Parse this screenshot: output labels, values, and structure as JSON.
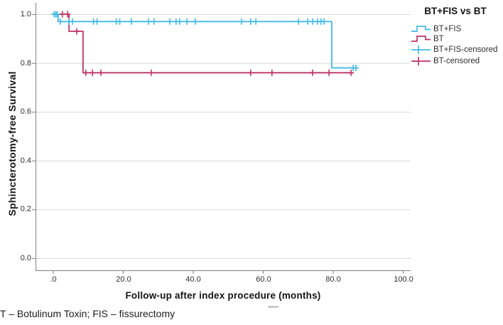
{
  "caption": "T – Botulinum Toxin; FIS – fissurectomy",
  "colors": {
    "series_blue": "#44BAE9",
    "series_red": "#BE3366",
    "grid": "#D9D9D9",
    "frame": "#8F8F8F",
    "tick_text": "#2E2E2E"
  },
  "chart_data": {
    "type": "line",
    "subtype": "kaplan-meier-step-survival",
    "title": "BT+FIS vs BT",
    "xlabel": "Follow-up after index procedure (months)",
    "ylabel": "Sphincterotomy-free Survival",
    "xlim": [
      -5,
      102
    ],
    "ylim": [
      -0.05,
      1.04
    ],
    "grid": true,
    "xticks": [
      0,
      20,
      40,
      60,
      80,
      100
    ],
    "xtick_labels": [
      ".0",
      "20.0",
      "40.0",
      "60.0",
      "80.0",
      "100.0"
    ],
    "yticks": [
      0.0,
      0.2,
      0.4,
      0.6,
      0.8,
      1.0
    ],
    "ytick_labels": [
      "0.0",
      "0.2",
      "0.4",
      "0.6",
      "0.8",
      "1.0"
    ],
    "series": [
      {
        "name": "BT+FIS",
        "color": "#44BAE9",
        "steps": [
          [
            0,
            1.0
          ],
          [
            1.4,
            1.0
          ],
          [
            1.4,
            0.97
          ],
          [
            79.6,
            0.97
          ],
          [
            79.6,
            0.78
          ],
          [
            87.0,
            0.78
          ]
        ],
        "censored": [
          [
            0.2,
            1.0
          ],
          [
            0.7,
            1.0
          ],
          [
            1.1,
            1.0
          ],
          [
            2.0,
            0.97
          ],
          [
            4.5,
            0.97
          ],
          [
            5.5,
            0.97
          ],
          [
            11.5,
            0.97
          ],
          [
            12.5,
            0.97
          ],
          [
            18.0,
            0.97
          ],
          [
            19.0,
            0.97
          ],
          [
            22.3,
            0.97
          ],
          [
            27.2,
            0.97
          ],
          [
            28.8,
            0.97
          ],
          [
            33.3,
            0.97
          ],
          [
            35.1,
            0.97
          ],
          [
            36.1,
            0.97
          ],
          [
            38.2,
            0.97
          ],
          [
            40.6,
            0.97
          ],
          [
            53.8,
            0.97
          ],
          [
            56.4,
            0.97
          ],
          [
            57.9,
            0.97
          ],
          [
            70.1,
            0.97
          ],
          [
            72.7,
            0.97
          ],
          [
            74.1,
            0.97
          ],
          [
            75.5,
            0.97
          ],
          [
            76.5,
            0.97
          ],
          [
            77.4,
            0.97
          ],
          [
            85.7,
            0.78
          ],
          [
            86.5,
            0.78
          ]
        ]
      },
      {
        "name": "BT",
        "color": "#BE3366",
        "steps": [
          [
            0,
            1.0
          ],
          [
            4.5,
            1.0
          ],
          [
            4.5,
            0.93
          ],
          [
            8.5,
            0.93
          ],
          [
            8.5,
            0.76
          ],
          [
            85.7,
            0.76
          ]
        ],
        "censored": [
          [
            2.6,
            1.0
          ],
          [
            4.1,
            1.0
          ],
          [
            6.7,
            0.93
          ],
          [
            9.3,
            0.76
          ],
          [
            11.2,
            0.76
          ],
          [
            13.6,
            0.76
          ],
          [
            28.0,
            0.76
          ],
          [
            56.4,
            0.76
          ],
          [
            62.5,
            0.76
          ],
          [
            74.1,
            0.76
          ],
          [
            78.8,
            0.76
          ],
          [
            85.1,
            0.76
          ]
        ]
      }
    ],
    "legend": {
      "position": "top-right",
      "entries": [
        {
          "label": "BT+FIS",
          "marker": "step-line",
          "color": "#44BAE9"
        },
        {
          "label": "BT",
          "marker": "step-line",
          "color": "#BE3366"
        },
        {
          "label": "BT+FIS-censored",
          "marker": "plus",
          "color": "#44BAE9"
        },
        {
          "label": "BT-censored",
          "marker": "plus",
          "color": "#BE3366"
        }
      ]
    }
  }
}
